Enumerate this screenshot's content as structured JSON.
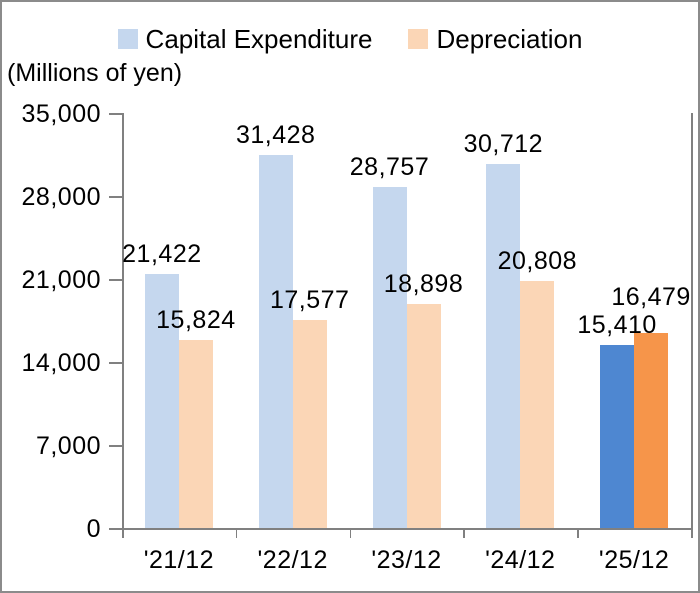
{
  "chart_data": {
    "type": "bar",
    "title": "",
    "y_axis_title": "(Millions of yen)",
    "categories": [
      "'21/12",
      "'22/12",
      "'23/12",
      "'24/12",
      "'25/12"
    ],
    "series": [
      {
        "name": "Capital Expenditure",
        "values": [
          21422,
          31428,
          28757,
          30712,
          15410
        ],
        "labels": [
          "21,422",
          "31,428",
          "28,757",
          "30,712",
          "15,410"
        ],
        "color": "#C5D7EE",
        "highlight_color": "#4E87D1"
      },
      {
        "name": "Depreciation",
        "values": [
          15824,
          17577,
          18898,
          20808,
          16479
        ],
        "labels": [
          "15,824",
          "17,577",
          "18,898",
          "20,808",
          "16,479"
        ],
        "color": "#FBD6B6",
        "highlight_color": "#F6954A"
      }
    ],
    "highlight_category_index": 4,
    "ylim": [
      0,
      35000
    ],
    "ytick_labels": [
      "0",
      "7,000",
      "14,000",
      "21,000",
      "28,000",
      "35,000"
    ],
    "ytick_values": [
      0,
      7000,
      14000,
      21000,
      28000,
      35000
    ],
    "legend_position": "top",
    "grid": false
  },
  "colors": {
    "axis": "#808080",
    "text": "#000000",
    "frame_border": "#8B8B8B",
    "background": "#FFFFFF"
  }
}
